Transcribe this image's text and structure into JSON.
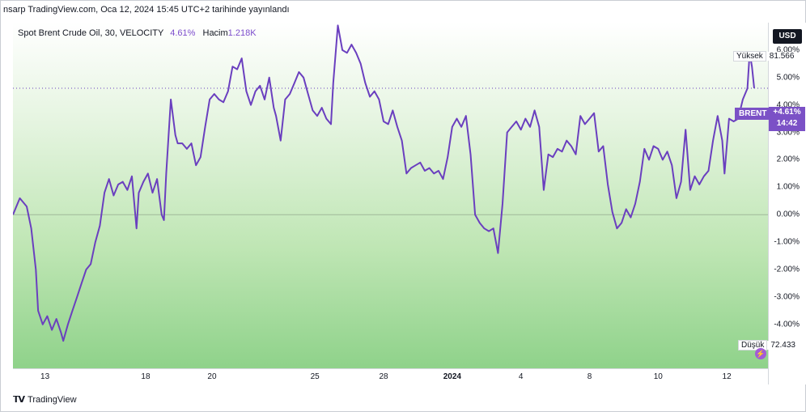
{
  "header": {
    "text": "nsarp TradingView.com, Oca 12, 2024 15:45 UTC+2 tarihinde yayınlandı"
  },
  "legend": {
    "title": "Spot Brent Crude Oil, 30, VELOCITY",
    "change": "4.61%",
    "volume_label": "Hacim",
    "volume_value": "1.218K"
  },
  "axis": {
    "currency": "USD",
    "high_label": "Yüksek",
    "high_value": "81.566",
    "low_label": "Düşük",
    "low_value": "72.433"
  },
  "last_price": {
    "symbol": "BRENT",
    "value": "+4.61%",
    "countdown": "14:42"
  },
  "footer": {
    "brand": "TradingView"
  },
  "colors": {
    "line": "#6a3fbf",
    "last_tag": "#7b51c6",
    "gradient_top": "#ffffff",
    "gradient_bottom": "#8fd28a"
  },
  "chart_data": {
    "type": "line",
    "title": "Spot Brent Crude Oil, 30, VELOCITY",
    "y_unit": "%",
    "y_ticks": [
      "6.00%",
      "5.00%",
      "4.00%",
      "3.00%",
      "2.00%",
      "1.00%",
      "0.00%",
      "-1.00%",
      "-2.00%",
      "-3.00%",
      "-4.00%"
    ],
    "y_tick_values": [
      6,
      5,
      4,
      3,
      2,
      1,
      0,
      -1,
      -2,
      -3,
      -4
    ],
    "x_ticks": [
      {
        "label": "13",
        "x": 1.4
      },
      {
        "label": "18",
        "x": 5.8
      },
      {
        "label": "20",
        "x": 8.7
      },
      {
        "label": "25",
        "x": 13.2
      },
      {
        "label": "28",
        "x": 16.2
      },
      {
        "label": "2024",
        "x": 19.2,
        "bold": true
      },
      {
        "label": "4",
        "x": 22.2
      },
      {
        "label": "8",
        "x": 25.2
      },
      {
        "label": "10",
        "x": 28.2
      },
      {
        "label": "12",
        "x": 31.2
      }
    ],
    "x_range": [
      0,
      33
    ],
    "y_range": [
      -5.6,
      7.0
    ],
    "last_value": 4.61,
    "series": [
      {
        "values": [
          [
            0.0,
            0.0
          ],
          [
            0.3,
            0.6
          ],
          [
            0.6,
            0.3
          ],
          [
            0.8,
            -0.5
          ],
          [
            1.0,
            -2.0
          ],
          [
            1.1,
            -3.5
          ],
          [
            1.3,
            -4.0
          ],
          [
            1.5,
            -3.7
          ],
          [
            1.7,
            -4.2
          ],
          [
            1.9,
            -3.8
          ],
          [
            2.1,
            -4.3
          ],
          [
            2.2,
            -4.6
          ],
          [
            2.4,
            -4.0
          ],
          [
            2.6,
            -3.5
          ],
          [
            2.8,
            -3.0
          ],
          [
            3.0,
            -2.5
          ],
          [
            3.2,
            -2.0
          ],
          [
            3.4,
            -1.8
          ],
          [
            3.6,
            -1.0
          ],
          [
            3.8,
            -0.4
          ],
          [
            4.0,
            0.8
          ],
          [
            4.2,
            1.3
          ],
          [
            4.4,
            0.7
          ],
          [
            4.6,
            1.1
          ],
          [
            4.8,
            1.2
          ],
          [
            5.0,
            0.9
          ],
          [
            5.2,
            1.4
          ],
          [
            5.4,
            -0.5
          ],
          [
            5.5,
            0.8
          ],
          [
            5.7,
            1.2
          ],
          [
            5.9,
            1.5
          ],
          [
            6.1,
            0.8
          ],
          [
            6.3,
            1.3
          ],
          [
            6.5,
            0.0
          ],
          [
            6.6,
            -0.2
          ],
          [
            6.7,
            1.5
          ],
          [
            6.9,
            4.2
          ],
          [
            7.1,
            2.9
          ],
          [
            7.2,
            2.6
          ],
          [
            7.4,
            2.6
          ],
          [
            7.6,
            2.4
          ],
          [
            7.8,
            2.6
          ],
          [
            8.0,
            1.8
          ],
          [
            8.2,
            2.1
          ],
          [
            8.4,
            3.2
          ],
          [
            8.6,
            4.2
          ],
          [
            8.8,
            4.4
          ],
          [
            9.0,
            4.2
          ],
          [
            9.2,
            4.1
          ],
          [
            9.4,
            4.5
          ],
          [
            9.6,
            5.4
          ],
          [
            9.8,
            5.3
          ],
          [
            10.0,
            5.7
          ],
          [
            10.2,
            4.5
          ],
          [
            10.4,
            4.0
          ],
          [
            10.6,
            4.5
          ],
          [
            10.8,
            4.7
          ],
          [
            11.0,
            4.2
          ],
          [
            11.2,
            5.0
          ],
          [
            11.4,
            3.9
          ],
          [
            11.5,
            3.6
          ],
          [
            11.7,
            2.7
          ],
          [
            11.9,
            4.2
          ],
          [
            12.1,
            4.4
          ],
          [
            12.3,
            4.8
          ],
          [
            12.5,
            5.2
          ],
          [
            12.7,
            5.0
          ],
          [
            12.9,
            4.4
          ],
          [
            13.1,
            3.8
          ],
          [
            13.3,
            3.6
          ],
          [
            13.5,
            3.9
          ],
          [
            13.7,
            3.5
          ],
          [
            13.9,
            3.3
          ],
          [
            14.0,
            4.8
          ],
          [
            14.2,
            6.9
          ],
          [
            14.4,
            6.0
          ],
          [
            14.6,
            5.9
          ],
          [
            14.8,
            6.2
          ],
          [
            15.0,
            5.9
          ],
          [
            15.2,
            5.5
          ],
          [
            15.4,
            4.8
          ],
          [
            15.6,
            4.3
          ],
          [
            15.8,
            4.5
          ],
          [
            16.0,
            4.2
          ],
          [
            16.2,
            3.4
          ],
          [
            16.4,
            3.3
          ],
          [
            16.6,
            3.8
          ],
          [
            16.8,
            3.2
          ],
          [
            17.0,
            2.7
          ],
          [
            17.2,
            1.5
          ],
          [
            17.4,
            1.7
          ],
          [
            17.6,
            1.8
          ],
          [
            17.8,
            1.9
          ],
          [
            18.0,
            1.6
          ],
          [
            18.2,
            1.7
          ],
          [
            18.4,
            1.5
          ],
          [
            18.6,
            1.6
          ],
          [
            18.8,
            1.3
          ],
          [
            19.0,
            2.1
          ],
          [
            19.2,
            3.2
          ],
          [
            19.4,
            3.5
          ],
          [
            19.6,
            3.2
          ],
          [
            19.8,
            3.6
          ],
          [
            20.0,
            2.2
          ],
          [
            20.2,
            0.0
          ],
          [
            20.4,
            -0.3
          ],
          [
            20.6,
            -0.5
          ],
          [
            20.8,
            -0.6
          ],
          [
            21.0,
            -0.5
          ],
          [
            21.2,
            -1.4
          ],
          [
            21.4,
            0.4
          ],
          [
            21.6,
            3.0
          ],
          [
            21.8,
            3.2
          ],
          [
            22.0,
            3.4
          ],
          [
            22.2,
            3.1
          ],
          [
            22.4,
            3.5
          ],
          [
            22.6,
            3.2
          ],
          [
            22.8,
            3.8
          ],
          [
            23.0,
            3.2
          ],
          [
            23.2,
            0.9
          ],
          [
            23.4,
            2.2
          ],
          [
            23.6,
            2.1
          ],
          [
            23.8,
            2.4
          ],
          [
            24.0,
            2.3
          ],
          [
            24.2,
            2.7
          ],
          [
            24.4,
            2.5
          ],
          [
            24.6,
            2.2
          ],
          [
            24.8,
            3.6
          ],
          [
            25.0,
            3.3
          ],
          [
            25.2,
            3.5
          ],
          [
            25.4,
            3.7
          ],
          [
            25.6,
            2.3
          ],
          [
            25.8,
            2.5
          ],
          [
            26.0,
            1.1
          ],
          [
            26.2,
            0.1
          ],
          [
            26.4,
            -0.5
          ],
          [
            26.6,
            -0.3
          ],
          [
            26.8,
            0.2
          ],
          [
            27.0,
            -0.1
          ],
          [
            27.2,
            0.4
          ],
          [
            27.4,
            1.2
          ],
          [
            27.6,
            2.4
          ],
          [
            27.8,
            2.0
          ],
          [
            28.0,
            2.5
          ],
          [
            28.2,
            2.4
          ],
          [
            28.4,
            2.0
          ],
          [
            28.6,
            2.3
          ],
          [
            28.8,
            1.8
          ],
          [
            29.0,
            0.6
          ],
          [
            29.2,
            1.2
          ],
          [
            29.4,
            3.1
          ],
          [
            29.6,
            0.9
          ],
          [
            29.8,
            1.4
          ],
          [
            30.0,
            1.1
          ],
          [
            30.2,
            1.4
          ],
          [
            30.4,
            1.6
          ],
          [
            30.6,
            2.7
          ],
          [
            30.8,
            3.6
          ],
          [
            31.0,
            2.7
          ],
          [
            31.1,
            1.5
          ],
          [
            31.3,
            3.5
          ],
          [
            31.5,
            3.4
          ],
          [
            31.7,
            3.5
          ],
          [
            31.9,
            4.2
          ],
          [
            32.1,
            4.6
          ],
          [
            32.2,
            5.9
          ],
          [
            32.3,
            5.4
          ],
          [
            32.4,
            4.61
          ]
        ]
      }
    ]
  }
}
